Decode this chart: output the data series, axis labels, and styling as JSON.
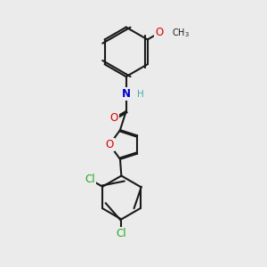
{
  "bg_color": "#ebebeb",
  "bond_color": "#1a1a1a",
  "bond_width": 1.5,
  "atom_colors": {
    "O": "#dd0000",
    "N": "#0000cc",
    "Cl": "#22aa22",
    "C": "#1a1a1a",
    "H": "#44aaaa"
  },
  "font_size": 8.5,
  "font_size_h": 7.5,
  "font_size_sub": 7.0
}
